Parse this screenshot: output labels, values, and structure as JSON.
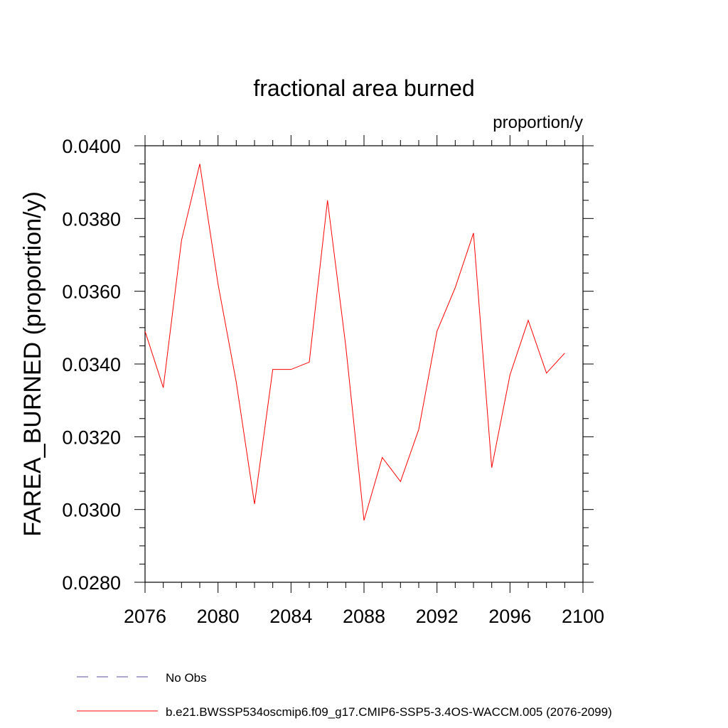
{
  "chart_data": {
    "type": "line",
    "title": "fractional area burned",
    "units_label": "proportion/y",
    "ylabel": "FAREA_BURNED  (proportion/y)",
    "xlabel": "",
    "xlim": [
      2076,
      2100
    ],
    "ylim": [
      0.028,
      0.04
    ],
    "x_ticks": [
      2076,
      2080,
      2084,
      2088,
      2092,
      2096,
      2100
    ],
    "y_ticks": [
      0.028,
      0.03,
      0.032,
      0.034,
      0.036,
      0.038,
      0.04
    ],
    "y_tick_labels": [
      "0.0280",
      "0.0300",
      "0.0320",
      "0.0340",
      "0.0360",
      "0.0380",
      "0.0400"
    ],
    "grid": false,
    "legend_position": "bottom-left, below plot",
    "series": [
      {
        "name": "No Obs",
        "color": "#5b4fa8",
        "style": "dashed",
        "x": [],
        "y": []
      },
      {
        "name": "b.e21.BWSSP534oscmip6.f09_g17.CMIP6-SSP5-3.4OS-WACCM.005 (2076-2099)",
        "color": "#ff0000",
        "style": "solid",
        "x": [
          2076,
          2077,
          2078,
          2079,
          2080,
          2081,
          2082,
          2083,
          2084,
          2085,
          2086,
          2087,
          2088,
          2089,
          2090,
          2091,
          2092,
          2093,
          2094,
          2095,
          2096,
          2097,
          2098,
          2099
        ],
        "y": [
          0.0349,
          0.03335,
          0.0374,
          0.0395,
          0.0362,
          0.0335,
          0.03015,
          0.03385,
          0.03385,
          0.03405,
          0.0385,
          0.0345,
          0.0297,
          0.03143,
          0.03077,
          0.0322,
          0.0349,
          0.0361,
          0.0376,
          0.03115,
          0.0337,
          0.0352,
          0.03375,
          0.0343
        ]
      }
    ]
  }
}
